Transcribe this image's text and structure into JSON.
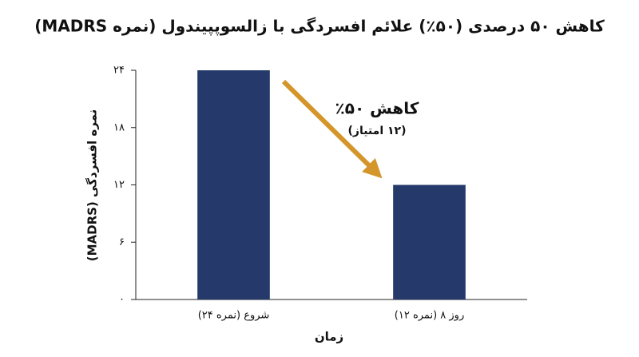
{
  "chart_data": {
    "type": "bar",
    "title": "کاهش ۵۰ درصدی (۵۰٪) علائم افسردگی با زالسوپپیندول (نمره MADRS)",
    "x_label": "زمان",
    "y_label": "نمره افسردگی (MADRS)",
    "categories": [
      "شروع (نمره ۲۴)",
      "روز ۸ (نمره ۱۲)"
    ],
    "values": [
      24,
      12
    ],
    "color": "#253a6b",
    "ylim": [
      0,
      24
    ],
    "yticks": [
      {
        "value": 0,
        "label": "۰"
      },
      {
        "value": 6,
        "label": "۶"
      },
      {
        "value": 12,
        "label": "۱۲"
      },
      {
        "value": 18,
        "label": "۱۸"
      },
      {
        "value": 24,
        "label": "۲۴"
      }
    ],
    "grid": false,
    "annotation": {
      "title": "کاهش ۵۰٪",
      "subtitle": "(۱۲ امتیاز)",
      "color": "#d4962a"
    }
  }
}
